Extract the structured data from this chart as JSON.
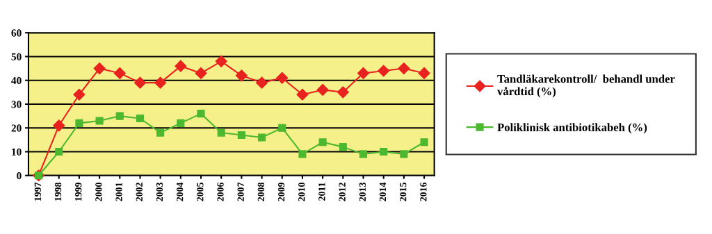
{
  "chart_data": {
    "type": "line",
    "categories": [
      "1997",
      "1998",
      "1999",
      "2000",
      "2001",
      "2002",
      "2003",
      "2004",
      "2005",
      "2006",
      "2007",
      "2008",
      "2009",
      "2010",
      "2011",
      "2012",
      "2013",
      "2014",
      "2015",
      "2016"
    ],
    "series": [
      {
        "name": "Tandläkarekontroll/  behandl under\nvårdtid (%)",
        "color": "#e8221e",
        "marker": "diamond",
        "values": [
          0,
          21,
          34,
          45,
          43,
          39,
          39,
          46,
          43,
          48,
          42,
          39,
          41,
          34,
          36,
          35,
          43,
          44,
          45,
          43
        ]
      },
      {
        "name": "Poliklinisk antibiotikabeh (%)",
        "color": "#4cb830",
        "marker": "square",
        "values": [
          0,
          10,
          22,
          23,
          25,
          24,
          18,
          22,
          26,
          18,
          17,
          16,
          20,
          9,
          14,
          12,
          9,
          10,
          9,
          14
        ]
      }
    ],
    "ylim": [
      0,
      60
    ],
    "yticks": [
      0,
      10,
      20,
      30,
      40,
      50,
      60
    ],
    "grid": "y",
    "legend": "right",
    "line_style": "solid"
  }
}
